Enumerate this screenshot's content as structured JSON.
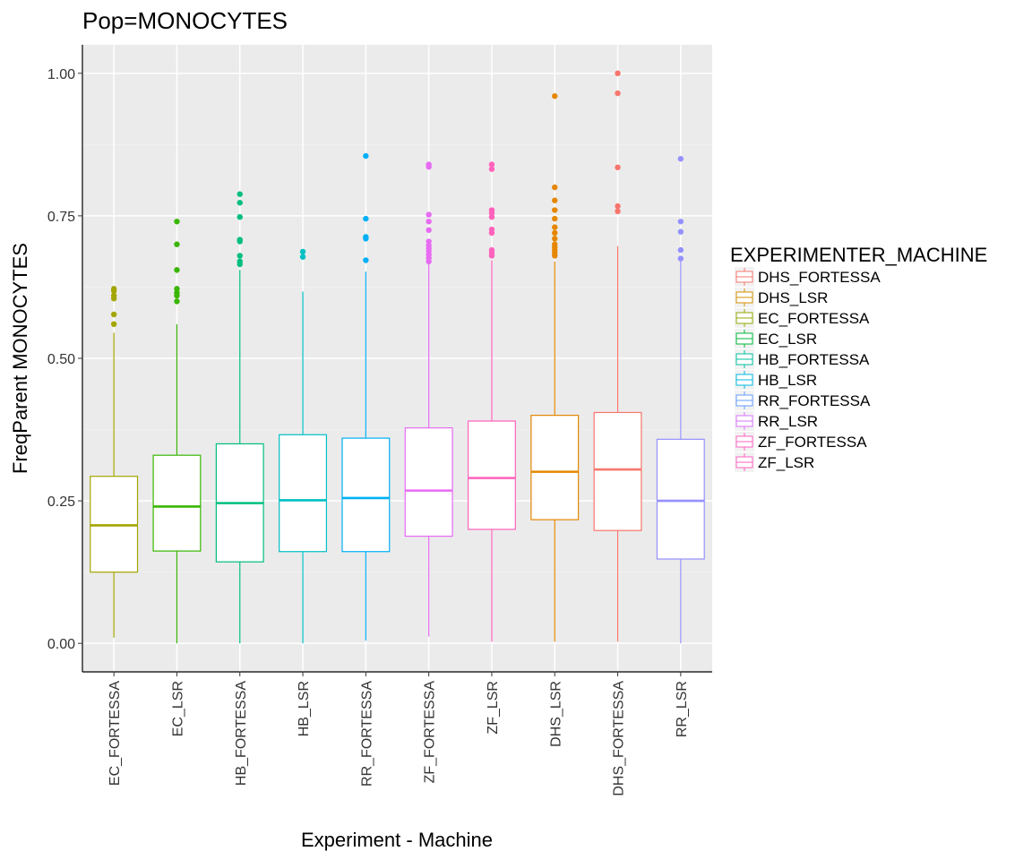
{
  "chart_data": {
    "type": "boxplot",
    "title": "Pop=MONOCYTES",
    "xlabel": "Experiment - Machine",
    "ylabel": "FreqParent  MONOCYTES",
    "ylim": [
      -0.05,
      1.05
    ],
    "y_ticks": [
      0.0,
      0.25,
      0.5,
      0.75,
      1.0
    ],
    "y_tick_labels": [
      "0.00",
      "0.25",
      "0.50",
      "0.75",
      "1.00"
    ],
    "grid": true,
    "legend_position": "right",
    "legend_title": "EXPERIMENTER_MACHINE",
    "legend": [
      {
        "label": "DHS_FORTESSA",
        "color": "#F8766D"
      },
      {
        "label": "DHS_LSR",
        "color": "#D39200"
      },
      {
        "label": "EC_FORTESSA",
        "color": "#93AA00"
      },
      {
        "label": "EC_LSR",
        "color": "#00BA38"
      },
      {
        "label": "HB_FORTESSA",
        "color": "#00C19F"
      },
      {
        "label": "HB_LSR",
        "color": "#00B9E3"
      },
      {
        "label": "RR_FORTESSA",
        "color": "#619CFF"
      },
      {
        "label": "RR_LSR",
        "color": "#DB72FB"
      },
      {
        "label": "ZF_FORTESSA",
        "color": "#FF61C3"
      },
      {
        "label": "ZF_LSR",
        "color": "#FF61C3"
      }
    ],
    "categories": [
      "EC_FORTESSA",
      "EC_LSR",
      "HB_FORTESSA",
      "HB_LSR",
      "RR_FORTESSA",
      "ZF_FORTESSA",
      "ZF_LSR",
      "DHS_LSR",
      "DHS_FORTESSA",
      "RR_LSR"
    ],
    "boxes": [
      {
        "category": "EC_FORTESSA",
        "color": "#A3A500",
        "min": 0.01,
        "q1": 0.125,
        "median": 0.207,
        "q3": 0.293,
        "max": 0.545,
        "outliers": [
          0.622,
          0.618,
          0.61,
          0.605,
          0.577,
          0.56
        ]
      },
      {
        "category": "EC_LSR",
        "color": "#39B600",
        "min": 0.0,
        "q1": 0.162,
        "median": 0.24,
        "q3": 0.33,
        "max": 0.56,
        "outliers": [
          0.74,
          0.7,
          0.655,
          0.622,
          0.615,
          0.61,
          0.6
        ]
      },
      {
        "category": "HB_FORTESSA",
        "color": "#00BF7D",
        "min": 0.0,
        "q1": 0.143,
        "median": 0.246,
        "q3": 0.35,
        "max": 0.655,
        "outliers": [
          0.788,
          0.773,
          0.748,
          0.708,
          0.705,
          0.68,
          0.67,
          0.665
        ]
      },
      {
        "category": "HB_LSR",
        "color": "#00BFC4",
        "min": 0.0,
        "q1": 0.161,
        "median": 0.251,
        "q3": 0.366,
        "max": 0.617,
        "outliers": [
          0.687,
          0.678
        ]
      },
      {
        "category": "RR_FORTESSA",
        "color": "#00B0F6",
        "min": 0.005,
        "q1": 0.161,
        "median": 0.255,
        "q3": 0.36,
        "max": 0.652,
        "outliers": [
          0.855,
          0.745,
          0.713,
          0.71,
          0.672
        ]
      },
      {
        "category": "ZF_FORTESSA",
        "color": "#E76BF3",
        "min": 0.012,
        "q1": 0.188,
        "median": 0.268,
        "q3": 0.378,
        "max": 0.667,
        "outliers": [
          0.84,
          0.836,
          0.752,
          0.74,
          0.725,
          0.705,
          0.698,
          0.693,
          0.688,
          0.682,
          0.676,
          0.67
        ]
      },
      {
        "category": "ZF_LSR",
        "color": "#FF62BC",
        "min": 0.003,
        "q1": 0.2,
        "median": 0.29,
        "q3": 0.39,
        "max": 0.672,
        "outliers": [
          0.84,
          0.832,
          0.76,
          0.755,
          0.748,
          0.726,
          0.72,
          0.69,
          0.685,
          0.68
        ]
      },
      {
        "category": "DHS_LSR",
        "color": "#E58700",
        "min": 0.003,
        "q1": 0.217,
        "median": 0.301,
        "q3": 0.4,
        "max": 0.67,
        "outliers": [
          0.96,
          0.8,
          0.777,
          0.76,
          0.745,
          0.73,
          0.72,
          0.71,
          0.7,
          0.695,
          0.69,
          0.685,
          0.68
        ]
      },
      {
        "category": "DHS_FORTESSA",
        "color": "#F8766D",
        "min": 0.003,
        "q1": 0.198,
        "median": 0.305,
        "q3": 0.405,
        "max": 0.697,
        "outliers": [
          1.0,
          0.965,
          0.835,
          0.767,
          0.758
        ]
      },
      {
        "category": "RR_LSR",
        "color": "#9590FF",
        "min": 0.0,
        "q1": 0.148,
        "median": 0.25,
        "q3": 0.358,
        "max": 0.67,
        "outliers": [
          0.85,
          0.74,
          0.722,
          0.69,
          0.675
        ]
      }
    ]
  }
}
